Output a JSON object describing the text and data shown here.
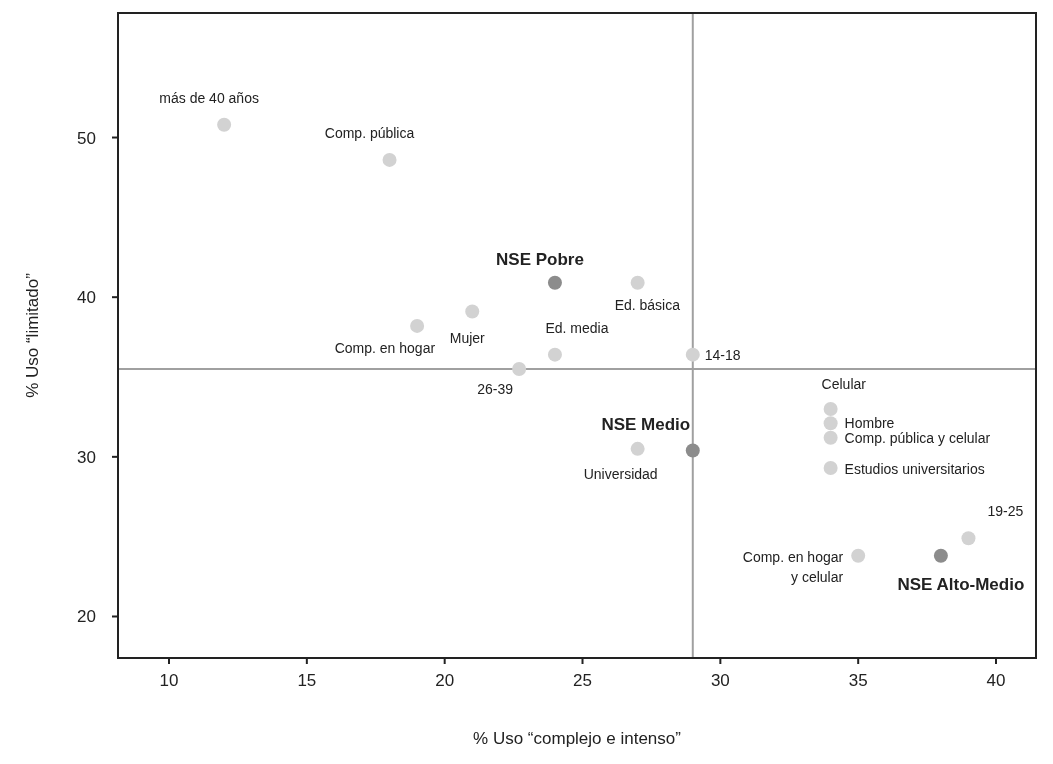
{
  "chart_data": {
    "type": "scatter",
    "xlabel": "% Uso “complejo e intenso”",
    "ylabel": "% Uso “limitado”",
    "xlim": [
      8.15,
      41.45
    ],
    "ylim": [
      17.4,
      57.8
    ],
    "xticks": [
      10,
      15,
      20,
      25,
      30,
      35,
      40
    ],
    "yticks": [
      20,
      30,
      40,
      50
    ],
    "grid": false,
    "marker": "circle",
    "series": [
      {
        "color": "#d2d2d2",
        "x": [
          12,
          18,
          27,
          19,
          21,
          24,
          29,
          22.7,
          34,
          34,
          34,
          34,
          27,
          39,
          35
        ],
        "values": [
          50.8,
          48.6,
          40.9,
          38.2,
          39.1,
          36.4,
          36.4,
          35.5,
          33,
          32.1,
          31.2,
          29.3,
          30.5,
          24.9,
          23.8
        ]
      },
      {
        "color": "#8c8c8c",
        "x": [
          24,
          29,
          38
        ],
        "values": [
          40.9,
          30.4,
          23.8
        ]
      }
    ],
    "ref_lines": [
      {
        "axis": "x",
        "value": 29,
        "color": "#a0a0a0"
      },
      {
        "axis": "y",
        "value": 35.5,
        "color": "#a0a0a0"
      }
    ],
    "annotations": [
      {
        "text": "más de 40 años",
        "x": 12,
        "y": 50.8
      },
      {
        "text": "Comp. pública",
        "x": 18,
        "y": 48.6
      },
      {
        "text": "NSE Pobre",
        "x": 24,
        "y": 40.9
      },
      {
        "text": "Ed. básica",
        "x": 27,
        "y": 40.9
      },
      {
        "text": "Comp. en hogar",
        "x": 19,
        "y": 38.2
      },
      {
        "text": "Mujer",
        "x": 21,
        "y": 39.1
      },
      {
        "text": "Ed. media",
        "x": 24,
        "y": 36.4
      },
      {
        "text": "14-18",
        "x": 29,
        "y": 36.4
      },
      {
        "text": "26-39",
        "x": 22.7,
        "y": 35.5
      },
      {
        "text": "Celular",
        "x": 34,
        "y": 33
      },
      {
        "text": "Hombre",
        "x": 34,
        "y": 32.1
      },
      {
        "text": "Comp. pública y celular",
        "x": 34,
        "y": 31.2
      },
      {
        "text": "Estudios universitarios",
        "x": 34,
        "y": 29.3
      },
      {
        "text": "Universidad",
        "x": 27,
        "y": 30.5
      },
      {
        "text": "NSE Medio",
        "x": 29,
        "y": 30.4
      },
      {
        "text": "19-25",
        "x": 39,
        "y": 24.9
      },
      {
        "text": "Comp. en hogar y celular",
        "x": 35,
        "y": 23.8
      },
      {
        "text": "NSE Alto-Medio",
        "x": 38,
        "y": 23.8
      }
    ]
  }
}
